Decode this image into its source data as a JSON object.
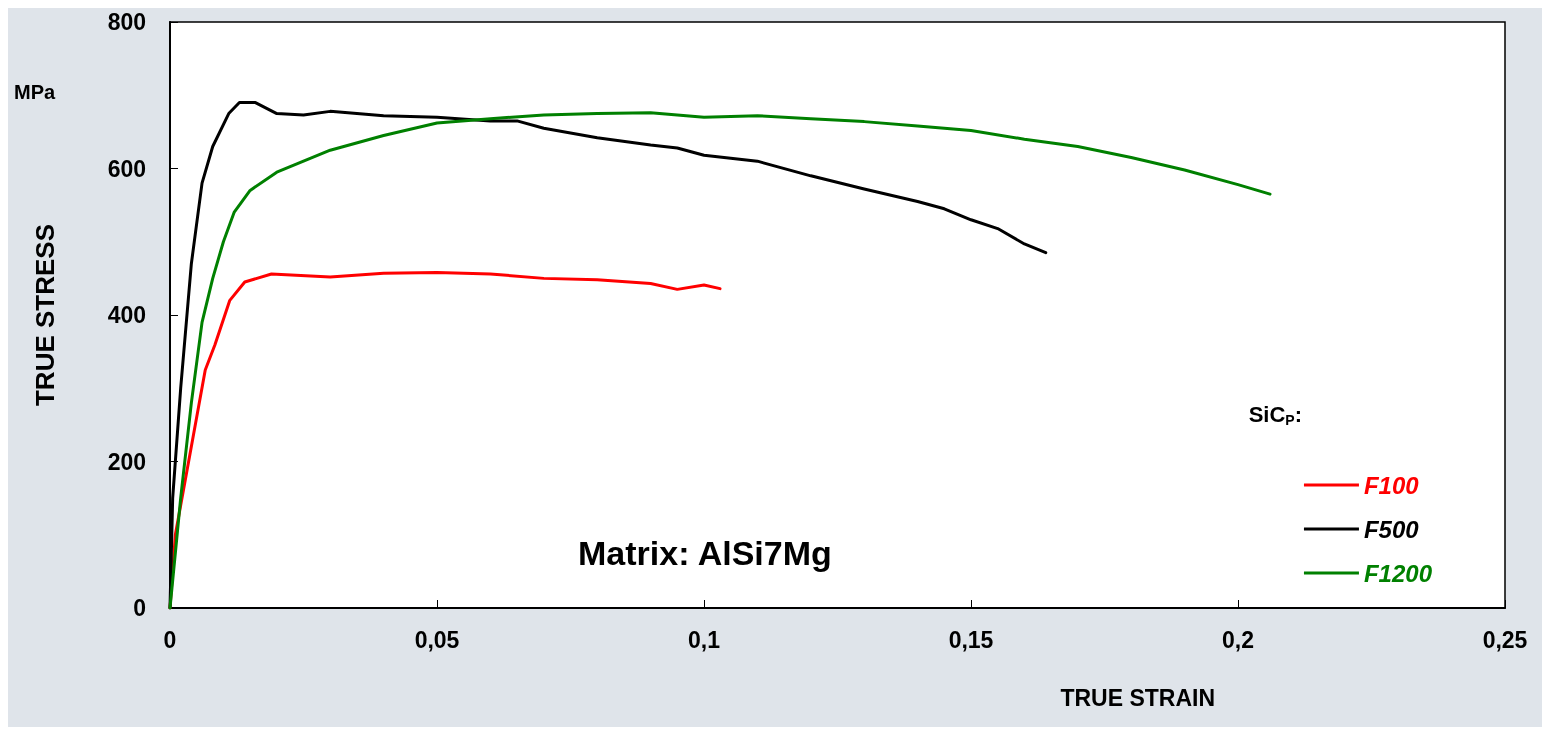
{
  "chart_data": {
    "type": "line",
    "xlabel": "TRUE STRAIN",
    "ylabel": "TRUE STRESS",
    "legend_title": "SiC$_{P}$:",
    "annotations": [
      "MPa",
      "Matrix: AlSi7Mg"
    ],
    "xlim": [
      0,
      0.25
    ],
    "xticks": [
      0,
      {
        "value": 0.05,
        "label": "0,05"
      },
      {
        "value": 0.1,
        "label": "0,1"
      },
      {
        "value": 0.15,
        "label": "0,15"
      },
      {
        "value": 0.2,
        "label": "0,2"
      },
      {
        "value": 0.25,
        "label": "0,25"
      }
    ],
    "ylim": [
      0,
      800
    ],
    "yticks": [
      0,
      200,
      400,
      600,
      800
    ],
    "grid": false,
    "legend": "bottom right",
    "marker": "none",
    "line_style": "solid",
    "series": [
      {
        "name": "F100",
        "color": "#ff0000",
        "x": [
          0,
          0.001,
          0.0066,
          0.0084,
          0.0112,
          0.014,
          0.019,
          0.03,
          0.04,
          0.05,
          0.06,
          0.07,
          0.08,
          0.09,
          0.095,
          0.1,
          0.103
        ],
        "values": [
          0,
          100,
          325,
          359,
          420,
          445,
          456,
          452,
          457,
          458,
          456,
          450,
          448,
          443,
          435,
          441,
          436
        ]
      },
      {
        "name": "F500",
        "color": "#000000",
        "x": [
          0,
          0.0005,
          0.002,
          0.004,
          0.006,
          0.008,
          0.011,
          0.013,
          0.016,
          0.02,
          0.025,
          0.03,
          0.04,
          0.05,
          0.06,
          0.065,
          0.07,
          0.08,
          0.09,
          0.095,
          0.1,
          0.11,
          0.12,
          0.13,
          0.14,
          0.145,
          0.15,
          0.155,
          0.16,
          0.164
        ],
        "values": [
          0,
          150,
          300,
          470,
          580,
          630,
          675,
          690,
          690,
          675,
          673,
          678,
          672,
          670,
          665,
          665,
          655,
          642,
          632,
          628,
          618,
          610,
          590,
          572,
          555,
          545,
          530,
          518,
          497,
          485
        ]
      },
      {
        "name": "F1200",
        "color": "#008000",
        "x": [
          0,
          0.002,
          0.004,
          0.006,
          0.008,
          0.01,
          0.012,
          0.015,
          0.02,
          0.025,
          0.03,
          0.04,
          0.05,
          0.06,
          0.07,
          0.08,
          0.09,
          0.1,
          0.11,
          0.12,
          0.13,
          0.14,
          0.15,
          0.16,
          0.17,
          0.18,
          0.19,
          0.2,
          0.206
        ],
        "values": [
          0,
          150,
          280,
          390,
          450,
          500,
          540,
          570,
          595,
          610,
          625,
          645,
          662,
          668,
          673,
          675,
          676,
          670,
          672,
          668,
          664,
          658,
          652,
          640,
          630,
          615,
          598,
          578,
          565
        ]
      }
    ]
  }
}
